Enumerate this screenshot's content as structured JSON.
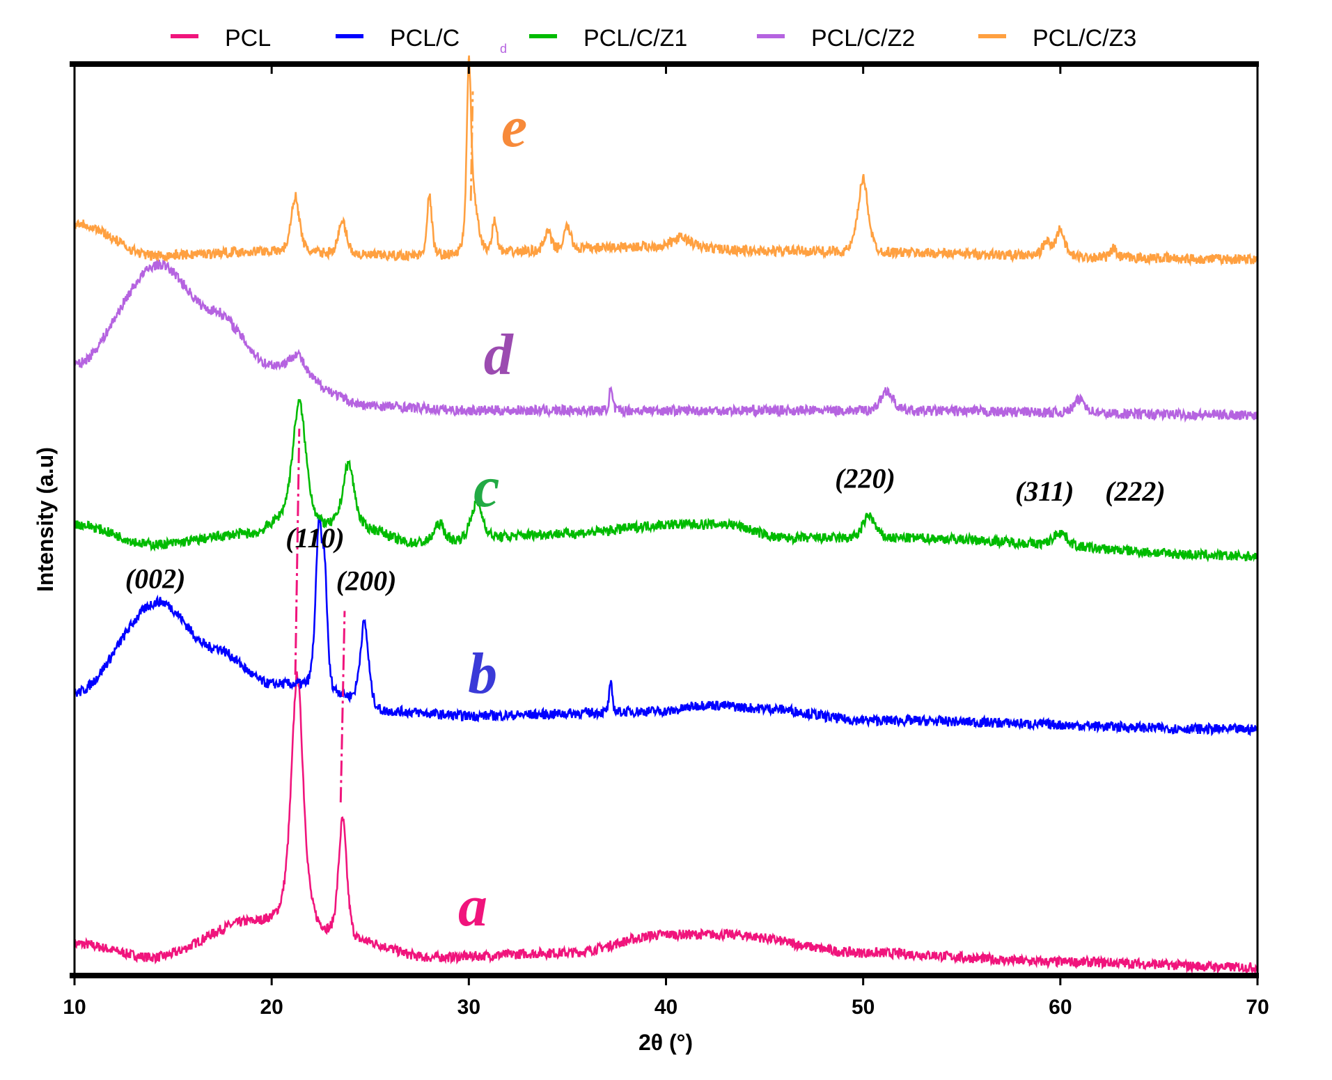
{
  "chart_data": {
    "type": "line",
    "title": "",
    "xlabel": "2θ (°)",
    "ylabel": "Intensity (a.u)",
    "xlim": [
      10,
      70
    ],
    "ylim": [
      0,
      100
    ],
    "xticks": [
      10,
      20,
      30,
      40,
      50,
      60,
      70
    ],
    "grid": false,
    "legend_position": "top",
    "legend_stray_label": "d",
    "series": [
      {
        "name": "PCL",
        "label": "a",
        "color": "#f0147c",
        "baseline": [
          [
            10,
            3.5
          ],
          [
            14,
            2
          ],
          [
            19,
            6
          ],
          [
            21,
            7
          ],
          [
            24,
            4
          ],
          [
            28,
            2
          ],
          [
            35,
            2.5
          ],
          [
            40,
            4.5
          ],
          [
            43,
            4.5
          ],
          [
            50,
            2.5
          ],
          [
            60,
            1.5
          ],
          [
            70,
            0.9
          ]
        ],
        "peaks": [
          [
            21.3,
            26,
            0.7
          ],
          [
            23.6,
            13,
            0.5
          ]
        ]
      },
      {
        "name": "PCL/C",
        "label": "b",
        "color": "#0000ff",
        "baseline": [
          [
            10,
            31
          ],
          [
            14.3,
            41
          ],
          [
            17,
            36
          ],
          [
            20,
            32
          ],
          [
            22,
            32
          ],
          [
            26,
            29
          ],
          [
            30,
            28.5
          ],
          [
            40,
            29
          ],
          [
            42,
            29.7
          ],
          [
            45,
            29.3
          ],
          [
            50,
            28
          ],
          [
            70,
            27
          ]
        ],
        "peaks": [
          [
            22.4,
            17,
            0.4
          ],
          [
            22.7,
            10,
            0.3
          ],
          [
            24.7,
            9,
            0.5
          ],
          [
            37.2,
            3,
            0.2
          ]
        ]
      },
      {
        "name": "PCL/C/Z1",
        "label": "c",
        "color": "#00bb00",
        "baseline": [
          [
            10,
            49.5
          ],
          [
            14,
            47.3
          ],
          [
            19,
            48.5
          ],
          [
            20.5,
            50
          ],
          [
            25,
            49
          ],
          [
            27,
            47.5
          ],
          [
            35,
            48.5
          ],
          [
            40.5,
            49.5
          ],
          [
            43,
            49.5
          ],
          [
            46,
            48
          ],
          [
            52,
            48
          ],
          [
            70,
            46
          ]
        ],
        "peaks": [
          [
            21.4,
            13,
            0.8
          ],
          [
            23.9,
            7,
            0.7
          ],
          [
            28.5,
            2,
            0.6
          ],
          [
            30.4,
            4,
            0.7
          ],
          [
            50.3,
            2.5,
            0.7
          ],
          [
            60,
            1.5,
            0.8
          ]
        ]
      },
      {
        "name": "PCL/C/Z2",
        "label": "d",
        "color": "#b563e0",
        "baseline": [
          [
            10,
            67
          ],
          [
            14.3,
            78
          ],
          [
            17,
            73
          ],
          [
            20,
            67
          ],
          [
            25,
            62.5
          ],
          [
            30,
            62
          ],
          [
            50,
            62
          ],
          [
            70,
            61.5
          ]
        ],
        "peaks": [
          [
            21.3,
            2,
            0.8
          ],
          [
            37.2,
            2.3,
            0.2
          ],
          [
            51.2,
            2.2,
            0.7
          ],
          [
            61,
            1.5,
            0.7
          ]
        ]
      },
      {
        "name": "PCL/C/Z3",
        "label": "e",
        "color": "#ffa040",
        "baseline": [
          [
            10,
            82.6
          ],
          [
            14,
            79
          ],
          [
            20,
            79.5
          ],
          [
            26,
            79
          ],
          [
            40,
            80
          ],
          [
            45,
            79.5
          ],
          [
            70,
            78.6
          ]
        ],
        "peaks": [
          [
            21.2,
            6,
            0.5
          ],
          [
            23.6,
            3.5,
            0.5
          ],
          [
            28,
            6.5,
            0.3
          ],
          [
            30,
            17,
            0.25
          ],
          [
            30.2,
            6,
            0.6
          ],
          [
            31.3,
            3.5,
            0.3
          ],
          [
            34,
            2,
            0.4
          ],
          [
            35,
            2.5,
            0.4
          ],
          [
            40.8,
            1,
            1
          ],
          [
            50,
            8,
            0.6
          ],
          [
            59.3,
            1.5,
            0.5
          ],
          [
            60,
            3,
            0.5
          ],
          [
            62.7,
            1,
            0.3
          ]
        ]
      }
    ],
    "letter_colors": {
      "a": "#f0147c",
      "b": "#3a3ad8",
      "c": "#22aa44",
      "d": "#9b4bb0",
      "e": "#f78a3a"
    },
    "annotations": [
      {
        "text": "(002)",
        "x": 14.1,
        "y": 42.5
      },
      {
        "text": "(110)",
        "x": 22.2,
        "y": 47
      },
      {
        "text": "(200)",
        "x": 24.8,
        "y": 42.3
      },
      {
        "text": "(220)",
        "x": 50.1,
        "y": 53.5
      },
      {
        "text": "(311)",
        "x": 59.2,
        "y": 52.1
      },
      {
        "text": "(222)",
        "x": 63.8,
        "y": 52.1
      }
    ]
  }
}
